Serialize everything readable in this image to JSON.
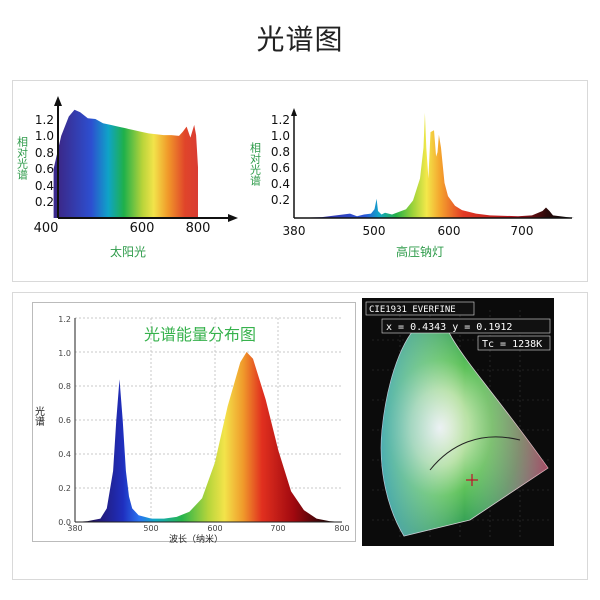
{
  "page": {
    "title": "光谱图"
  },
  "colors": {
    "label_green": "#2e9b4a",
    "axis": "#111111",
    "panel_border": "#d9d9d9"
  },
  "chart_data": [
    {
      "type": "area",
      "title": "太阳光",
      "ylabel": "相对光谱",
      "x_ticks": [
        "400",
        "600",
        "800"
      ],
      "y_ticks": [
        "1.2",
        "1.0",
        "0.8",
        "0.6",
        "0.4",
        "0.2"
      ],
      "xlim": [
        400,
        800
      ],
      "ylim": [
        0,
        1.3
      ],
      "series": [
        {
          "x": [
            420,
            440,
            460,
            475,
            490,
            510,
            530,
            550,
            570,
            590,
            610,
            630,
            650,
            670,
            690,
            710,
            730,
            750,
            760,
            770,
            780,
            790,
            795,
            800
          ],
          "y": [
            0.58,
            0.97,
            1.2,
            1.28,
            1.25,
            1.18,
            1.17,
            1.12,
            1.1,
            1.08,
            1.06,
            1.04,
            1.02,
            1.0,
            0.99,
            0.98,
            0.98,
            0.97,
            1.02,
            1.08,
            0.95,
            1.1,
            0.98,
            0.6
          ]
        }
      ]
    },
    {
      "type": "area",
      "title": "高压钠灯",
      "ylabel": "相对光谱",
      "x_ticks": [
        "380",
        "500",
        "600",
        "700"
      ],
      "y_ticks": [
        "1.2",
        "1.0",
        "0.8",
        "0.6",
        "0.4",
        "0.2"
      ],
      "xlim": [
        380,
        780
      ],
      "ylim": [
        0,
        1.3
      ],
      "series": [
        {
          "x": [
            380,
            420,
            440,
            460,
            470,
            480,
            490,
            495,
            498,
            500,
            505,
            510,
            520,
            540,
            550,
            560,
            565,
            567,
            569,
            572,
            575,
            580,
            583,
            585,
            587,
            590,
            595,
            600,
            610,
            620,
            640,
            660,
            700,
            720,
            735,
            740,
            745,
            750,
            780
          ],
          "y": [
            0,
            0.01,
            0.03,
            0.05,
            0.02,
            0.04,
            0.05,
            0.1,
            0.22,
            0.08,
            0.04,
            0.06,
            0.04,
            0.1,
            0.2,
            0.45,
            0.8,
            1.2,
            0.8,
            0.45,
            0.98,
            1.0,
            0.7,
            0.75,
            0.95,
            0.8,
            0.4,
            0.25,
            0.14,
            0.09,
            0.05,
            0.03,
            0.02,
            0.03,
            0.08,
            0.12,
            0.08,
            0.03,
            0
          ]
        }
      ]
    },
    {
      "type": "area",
      "title": "光谱能量分布图",
      "xlabel": "波长（纳米）",
      "ylabel": "光谱",
      "x_ticks": [
        "380",
        "500",
        "600",
        "700",
        "800"
      ],
      "y_ticks": [
        "0.0",
        "0.2",
        "0.4",
        "0.6",
        "0.8",
        "1.0",
        "1.2"
      ],
      "xlim": [
        380,
        800
      ],
      "ylim": [
        0,
        1.2
      ],
      "series": [
        {
          "x": [
            380,
            400,
            420,
            430,
            440,
            445,
            450,
            455,
            460,
            465,
            470,
            480,
            500,
            520,
            540,
            560,
            580,
            600,
            620,
            640,
            650,
            660,
            680,
            700,
            720,
            740,
            760,
            780,
            800
          ],
          "y": [
            0,
            0.005,
            0.02,
            0.08,
            0.3,
            0.6,
            0.84,
            0.6,
            0.3,
            0.15,
            0.08,
            0.04,
            0.02,
            0.02,
            0.03,
            0.06,
            0.14,
            0.35,
            0.68,
            0.94,
            1.0,
            0.96,
            0.72,
            0.42,
            0.18,
            0.07,
            0.02,
            0.005,
            0
          ]
        }
      ]
    },
    {
      "type": "scatter",
      "title": "CIE1931 EVERFINE",
      "annotations": [
        "x = 0.4343  y = 0.1912",
        "Tc = 1238K"
      ],
      "series": [
        {
          "x": [
            0.4343
          ],
          "y": [
            0.1912
          ]
        }
      ]
    }
  ]
}
